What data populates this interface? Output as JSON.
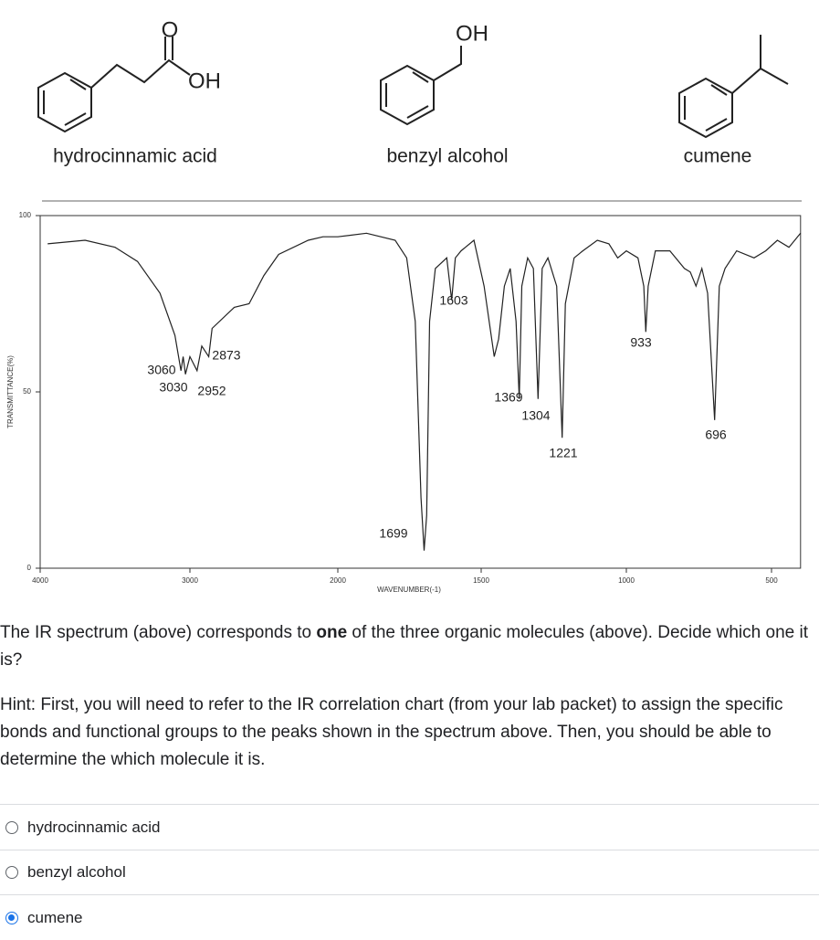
{
  "molecules": [
    {
      "name": "hydrocinnamic acid",
      "atoms": [
        "O",
        "OH"
      ]
    },
    {
      "name": "benzyl alcohol",
      "atoms": [
        "OH"
      ]
    },
    {
      "name": "cumene",
      "atoms": []
    }
  ],
  "spectrum": {
    "type": "line",
    "color": "#222222",
    "xlabel": "WAVENUMBER(-1)",
    "ylabel": "TRANSMITTANCE(%)",
    "x": [
      3950,
      3700,
      3500,
      3350,
      3200,
      3100,
      3060,
      3045,
      3030,
      3000,
      2952,
      2920,
      2873,
      2850,
      2700,
      2600,
      2500,
      2400,
      2200,
      2100,
      2000,
      1900,
      1800,
      1760,
      1730,
      1710,
      1699,
      1690,
      1680,
      1660,
      1620,
      1603,
      1590,
      1570,
      1525,
      1490,
      1455,
      1440,
      1420,
      1400,
      1380,
      1369,
      1360,
      1340,
      1320,
      1304,
      1290,
      1270,
      1240,
      1221,
      1210,
      1180,
      1150,
      1100,
      1060,
      1030,
      1000,
      960,
      940,
      933,
      925,
      900,
      850,
      800,
      780,
      760,
      740,
      720,
      696,
      680,
      660,
      620,
      560,
      520,
      480,
      440,
      400
    ],
    "values": [
      92,
      93,
      91,
      87,
      78,
      66,
      56,
      60,
      55,
      60,
      56,
      63,
      60,
      68,
      74,
      75,
      83,
      89,
      93,
      94,
      94,
      95,
      93,
      88,
      70,
      20,
      5,
      15,
      70,
      85,
      88,
      76,
      88,
      90,
      93,
      80,
      60,
      65,
      80,
      85,
      70,
      48,
      80,
      88,
      85,
      48,
      85,
      88,
      80,
      37,
      75,
      88,
      90,
      93,
      92,
      88,
      90,
      88,
      80,
      67,
      80,
      90,
      90,
      85,
      84,
      80,
      85,
      78,
      42,
      80,
      85,
      90,
      88,
      90,
      93,
      91,
      95
    ],
    "xlim": [
      4000,
      400
    ],
    "ylim": [
      0,
      100
    ],
    "xticks": [
      4000,
      3000,
      2000,
      1500,
      1000,
      500
    ],
    "yticks": [
      0,
      50,
      100
    ],
    "peaks": [
      3060,
      3030,
      2952,
      2873,
      1699,
      1603,
      1369,
      1304,
      1221,
      933,
      696
    ]
  },
  "question": {
    "before": "The IR spectrum (above) corresponds to ",
    "bold": "one",
    "after": " of the three organic molecules (above). Decide which one it is?",
    "hint": "Hint: First, you will need to refer to the IR correlation chart (from your lab packet) to assign the specific bonds and functional groups to the peaks shown in the spectrum above. Then, you should be able to determine the which molecule it is."
  },
  "options": [
    "hydrocinnamic acid",
    "benzyl alcohol",
    "cumene"
  ],
  "selected": 2
}
